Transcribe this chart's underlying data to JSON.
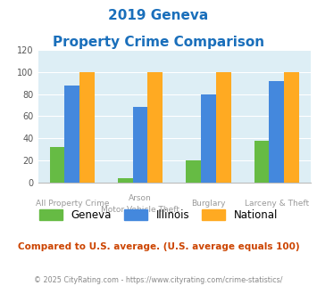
{
  "title_line1": "2019 Geneva",
  "title_line2": "Property Crime Comparison",
  "title_color": "#1a6fbb",
  "cat_labels_row1": [
    "All Property Crime",
    "Arson",
    "Burglary",
    "Larceny & Theft"
  ],
  "cat_labels_row2": [
    "",
    "Motor Vehicle Theft",
    "",
    ""
  ],
  "geneva": [
    32,
    4,
    20,
    38
  ],
  "illinois": [
    88,
    68,
    80,
    92
  ],
  "national": [
    100,
    100,
    100,
    100
  ],
  "geneva_color": "#66bb44",
  "illinois_color": "#4488dd",
  "national_color": "#ffaa22",
  "ylim": [
    0,
    120
  ],
  "yticks": [
    0,
    20,
    40,
    60,
    80,
    100,
    120
  ],
  "plot_bg": "#ddeef5",
  "fig_bg": "#ffffff",
  "footer_text": "Compared to U.S. average. (U.S. average equals 100)",
  "footer_color": "#cc4400",
  "credit_text": "© 2025 CityRating.com - https://www.cityrating.com/crime-statistics/",
  "credit_color": "#888888",
  "xlabel_color": "#999999",
  "bar_width": 0.22
}
